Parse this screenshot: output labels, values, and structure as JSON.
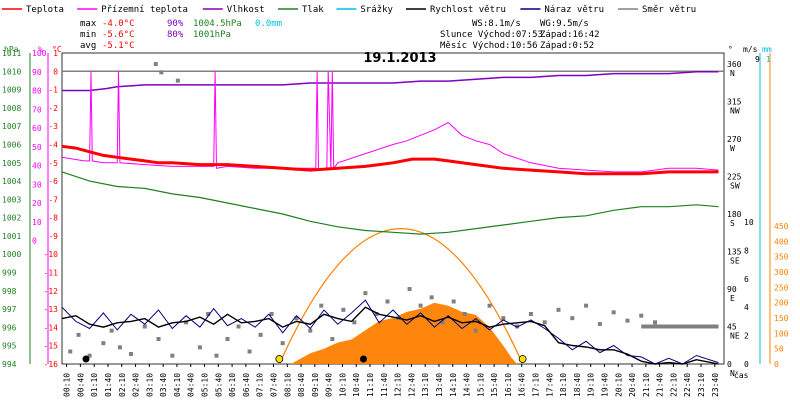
{
  "chart_data": {
    "type": "line",
    "title": "19.1.2013",
    "x_label": "čas",
    "x_ticks": [
      "00:10",
      "00:40",
      "01:10",
      "01:40",
      "02:10",
      "02:40",
      "03:10",
      "03:40",
      "04:10",
      "04:40",
      "05:10",
      "05:40",
      "06:10",
      "06:40",
      "07:10",
      "07:40",
      "08:10",
      "08:40",
      "09:10",
      "09:40",
      "10:10",
      "10:40",
      "11:10",
      "11:40",
      "12:10",
      "12:40",
      "13:10",
      "13:40",
      "14:10",
      "14:40",
      "15:10",
      "15:40",
      "16:10",
      "16:40",
      "17:10",
      "17:40",
      "18:10",
      "18:40",
      "19:10",
      "19:40",
      "20:10",
      "20:40",
      "21:10",
      "21:40",
      "22:10",
      "22:40",
      "23:10",
      "23:40"
    ],
    "legend": [
      {
        "name": "Teplota",
        "color": "#ff0000"
      },
      {
        "name": "Přízemní teplota",
        "color": "#ff00ff"
      },
      {
        "name": "Vlhkost",
        "color": "#8000c0"
      },
      {
        "name": "Tlak",
        "color": "#208020"
      },
      {
        "name": "Srážky",
        "color": "#00c0e0"
      },
      {
        "name": "Rychlost větru",
        "color": "#000000"
      },
      {
        "name": "Náraz větru",
        "color": "#000080"
      },
      {
        "name": "Směr větru",
        "color": "#808080"
      }
    ],
    "stats": {
      "max": {
        "label": "max",
        "temp": "-4.0°C",
        "hum": "90%",
        "press": "1004.5hPa",
        "rain": "0.0mm"
      },
      "min": {
        "label": "min",
        "temp": "-5.6°C",
        "hum": "80%",
        "press": "1001hPa"
      },
      "avg": {
        "label": "avg",
        "temp": "-5.1°C"
      }
    },
    "info": {
      "ws": "WS:8.1m/s",
      "wg": "WG:9.5m/s",
      "sun": "Slunce Východ:07:53",
      "sunset": "Západ:16:42",
      "moon": "Měsíc  Východ:10:56",
      "moonset": "Západ:0:52"
    },
    "axes": {
      "press_unit": "hPa",
      "hum_unit": "%",
      "temp_unit": "°C",
      "dir_unit": "°",
      "wind_unit": "m/s",
      "rain_unit": "mm",
      "press_ticks": [
        "1011",
        "1010",
        "1009",
        "1008",
        "1007",
        "1006",
        "1005",
        "1004",
        "1003",
        "1002",
        "1001",
        "1000",
        "999",
        "998",
        "997",
        "996",
        "995",
        "994"
      ],
      "hum_ticks": [
        "100",
        "90",
        "80",
        "70",
        "60",
        "50",
        "40",
        "30",
        "20",
        "10",
        "0"
      ],
      "temp_ticks": [
        "1",
        "0",
        "-1",
        "-2",
        "-3",
        "-4",
        "-5",
        "-6",
        "-7",
        "-8",
        "-9",
        "-10",
        "-11",
        "-12",
        "-13",
        "-14",
        "-15",
        "-16"
      ],
      "dir_ticks": [
        {
          "deg": "360",
          "n": "N"
        },
        {
          "deg": "315",
          "n": "NW"
        },
        {
          "deg": "270",
          "n": "W"
        },
        {
          "deg": "225",
          "n": "SW"
        },
        {
          "deg": "180",
          "n": "S"
        },
        {
          "deg": "135",
          "n": "SE"
        },
        {
          "deg": "90",
          "n": "E"
        },
        {
          "deg": "45",
          "n": "NE"
        },
        {
          "deg": "0",
          "n": "N"
        }
      ],
      "wind_ticks": [
        "10",
        "8",
        "6",
        "4",
        "2",
        "0"
      ],
      "rain_ticks": [
        "450",
        "400",
        "350",
        "300",
        "250",
        "200",
        "150",
        "100",
        "50",
        "0"
      ],
      "wind_top": "9",
      "rain_top": "1"
    },
    "temperature": [
      [
        0,
        -4.1
      ],
      [
        0.5,
        -4.2
      ],
      [
        1,
        -4.4
      ],
      [
        1.5,
        -4.6
      ],
      [
        2,
        -4.7
      ],
      [
        2.5,
        -4.8
      ],
      [
        3,
        -4.9
      ],
      [
        3.5,
        -5.0
      ],
      [
        4,
        -5.0
      ],
      [
        5,
        -5.1
      ],
      [
        6,
        -5.1
      ],
      [
        7,
        -5.2
      ],
      [
        8,
        -5.3
      ],
      [
        9,
        -5.4
      ],
      [
        10,
        -5.3
      ],
      [
        11,
        -5.2
      ],
      [
        12,
        -5.0
      ],
      [
        12.7,
        -4.8
      ],
      [
        13.5,
        -4.8
      ],
      [
        14,
        -4.9
      ],
      [
        15,
        -5.1
      ],
      [
        16,
        -5.3
      ],
      [
        17,
        -5.4
      ],
      [
        18,
        -5.5
      ],
      [
        19,
        -5.6
      ],
      [
        20,
        -5.6
      ],
      [
        21,
        -5.6
      ],
      [
        22,
        -5.5
      ],
      [
        23,
        -5.5
      ],
      [
        23.8,
        -5.5
      ]
    ],
    "ground_temp": [
      [
        0,
        -4.7
      ],
      [
        0.8,
        -4.9
      ],
      [
        1.0,
        -4.9
      ],
      [
        1.05,
        0
      ],
      [
        1.1,
        -4.9
      ],
      [
        1.5,
        -5.0
      ],
      [
        2.0,
        -5.0
      ],
      [
        2.05,
        0
      ],
      [
        2.1,
        -5.0
      ],
      [
        3,
        -5.1
      ],
      [
        4,
        -5.2
      ],
      [
        5,
        -5.2
      ],
      [
        5.5,
        -5.2
      ],
      [
        5.55,
        0
      ],
      [
        5.6,
        -5.3
      ],
      [
        6,
        -5.2
      ],
      [
        7,
        -5.3
      ],
      [
        8,
        -5.3
      ],
      [
        9,
        -5.3
      ],
      [
        9.2,
        -5.3
      ],
      [
        9.25,
        0
      ],
      [
        9.3,
        -5.3
      ],
      [
        9.6,
        -5.4
      ],
      [
        9.65,
        0
      ],
      [
        9.75,
        -5.4
      ],
      [
        9.8,
        0
      ],
      [
        9.85,
        -5.3
      ],
      [
        10,
        -5.0
      ],
      [
        11,
        -4.5
      ],
      [
        12,
        -4.0
      ],
      [
        12.5,
        -3.8
      ],
      [
        13,
        -3.5
      ],
      [
        13.5,
        -3.2
      ],
      [
        14,
        -2.8
      ],
      [
        14.5,
        -3.5
      ],
      [
        15,
        -3.8
      ],
      [
        15.5,
        -4.0
      ],
      [
        16,
        -4.5
      ],
      [
        17,
        -5.0
      ],
      [
        18,
        -5.3
      ],
      [
        19,
        -5.4
      ],
      [
        20,
        -5.5
      ],
      [
        21,
        -5.5
      ],
      [
        22,
        -5.3
      ],
      [
        23,
        -5.3
      ],
      [
        23.8,
        -5.4
      ]
    ],
    "humidity": [
      [
        0,
        80
      ],
      [
        1,
        80
      ],
      [
        1.6,
        81
      ],
      [
        2,
        82
      ],
      [
        3,
        83
      ],
      [
        4,
        83
      ],
      [
        5,
        83
      ],
      [
        6,
        83
      ],
      [
        7,
        83
      ],
      [
        8,
        83
      ],
      [
        9,
        84
      ],
      [
        10,
        84
      ],
      [
        11,
        84
      ],
      [
        12,
        84
      ],
      [
        13,
        85
      ],
      [
        14,
        85
      ],
      [
        15,
        86
      ],
      [
        16,
        87
      ],
      [
        17,
        87
      ],
      [
        18,
        88
      ],
      [
        19,
        88
      ],
      [
        20,
        89
      ],
      [
        21,
        89
      ],
      [
        22,
        89
      ],
      [
        23,
        90
      ],
      [
        23.8,
        90
      ]
    ],
    "pressure": [
      [
        0,
        1004.5
      ],
      [
        1,
        1004.0
      ],
      [
        2,
        1003.7
      ],
      [
        3,
        1003.6
      ],
      [
        4,
        1003.3
      ],
      [
        5,
        1003.1
      ],
      [
        6,
        1002.8
      ],
      [
        7,
        1002.5
      ],
      [
        8,
        1002.2
      ],
      [
        9,
        1001.8
      ],
      [
        10,
        1001.5
      ],
      [
        11,
        1001.3
      ],
      [
        12,
        1001.2
      ],
      [
        13,
        1001.1
      ],
      [
        14,
        1001.2
      ],
      [
        15,
        1001.4
      ],
      [
        16,
        1001.6
      ],
      [
        17,
        1001.8
      ],
      [
        18,
        1002.0
      ],
      [
        19,
        1002.1
      ],
      [
        20,
        1002.4
      ],
      [
        21,
        1002.6
      ],
      [
        22,
        1002.6
      ],
      [
        23,
        1002.7
      ],
      [
        23.8,
        1002.6
      ]
    ],
    "wind_speed": [
      [
        0,
        3.2
      ],
      [
        0.5,
        3.4
      ],
      [
        1,
        2.8
      ],
      [
        1.5,
        2.6
      ],
      [
        2,
        2.9
      ],
      [
        2.5,
        3.0
      ],
      [
        3,
        3.2
      ],
      [
        3.5,
        2.6
      ],
      [
        4,
        2.9
      ],
      [
        4.5,
        3.0
      ],
      [
        5,
        3.3
      ],
      [
        5.5,
        2.8
      ],
      [
        6,
        3.5
      ],
      [
        6.5,
        2.9
      ],
      [
        7,
        3.0
      ],
      [
        7.5,
        3.2
      ],
      [
        8,
        2.6
      ],
      [
        8.5,
        3.0
      ],
      [
        9,
        2.8
      ],
      [
        9.5,
        3.5
      ],
      [
        10,
        3.2
      ],
      [
        10.5,
        3.0
      ],
      [
        11,
        4.0
      ],
      [
        11.5,
        3.5
      ],
      [
        12,
        3.3
      ],
      [
        12.5,
        3.1
      ],
      [
        13,
        3.4
      ],
      [
        13.5,
        3.0
      ],
      [
        14,
        3.3
      ],
      [
        14.5,
        2.9
      ],
      [
        15,
        3.0
      ],
      [
        15.5,
        2.6
      ],
      [
        16,
        2.8
      ],
      [
        16.5,
        2.9
      ],
      [
        17,
        3.0
      ],
      [
        17.5,
        2.7
      ],
      [
        18,
        1.5
      ],
      [
        18.5,
        1.3
      ],
      [
        19,
        1.2
      ],
      [
        19.5,
        1.0
      ],
      [
        20,
        1.0
      ],
      [
        20.5,
        0.7
      ],
      [
        21,
        0.2
      ],
      [
        21.5,
        0
      ],
      [
        22,
        0.1
      ],
      [
        22.5,
        0
      ],
      [
        23,
        0.3
      ],
      [
        23.8,
        0
      ]
    ],
    "wind_gust": [
      [
        0,
        4.0
      ],
      [
        0.5,
        3.0
      ],
      [
        1,
        2.5
      ],
      [
        1.5,
        3.6
      ],
      [
        2,
        2.4
      ],
      [
        2.5,
        3.5
      ],
      [
        3,
        2.8
      ],
      [
        3.5,
        3.8
      ],
      [
        4,
        2.5
      ],
      [
        4.5,
        3.4
      ],
      [
        5,
        2.6
      ],
      [
        5.5,
        3.9
      ],
      [
        6,
        2.7
      ],
      [
        6.5,
        3.2
      ],
      [
        7,
        2.6
      ],
      [
        7.5,
        3.5
      ],
      [
        8,
        2.2
      ],
      [
        8.5,
        3.4
      ],
      [
        9,
        2.5
      ],
      [
        9.5,
        3.8
      ],
      [
        10,
        2.8
      ],
      [
        10.5,
        3.6
      ],
      [
        11,
        4.5
      ],
      [
        11.5,
        2.9
      ],
      [
        12,
        3.8
      ],
      [
        12.5,
        2.8
      ],
      [
        13,
        3.6
      ],
      [
        13.5,
        2.6
      ],
      [
        14,
        3.4
      ],
      [
        14.5,
        2.5
      ],
      [
        15,
        3.2
      ],
      [
        15.5,
        2.4
      ],
      [
        16,
        3.1
      ],
      [
        16.5,
        2.6
      ],
      [
        17,
        3.1
      ],
      [
        17.5,
        2.5
      ],
      [
        18,
        1.8
      ],
      [
        18.5,
        1.0
      ],
      [
        19,
        1.6
      ],
      [
        19.5,
        0.8
      ],
      [
        20,
        1.3
      ],
      [
        20.5,
        0.6
      ],
      [
        21,
        0.5
      ],
      [
        21.5,
        0
      ],
      [
        22,
        0.4
      ],
      [
        22.5,
        0
      ],
      [
        23,
        0.6
      ],
      [
        23.8,
        0.1
      ]
    ],
    "wind_dir_points": [
      [
        0.3,
        15
      ],
      [
        0.6,
        35
      ],
      [
        1,
        10
      ],
      [
        1.5,
        25
      ],
      [
        1.8,
        40
      ],
      [
        2.1,
        20
      ],
      [
        2.5,
        12
      ],
      [
        3,
        45
      ],
      [
        3.5,
        30
      ],
      [
        4,
        10
      ],
      [
        4.5,
        50
      ],
      [
        5,
        20
      ],
      [
        5.3,
        60
      ],
      [
        5.6,
        10
      ],
      [
        6,
        30
      ],
      [
        6.4,
        45
      ],
      [
        6.8,
        15
      ],
      [
        7.2,
        35
      ],
      [
        7.6,
        60
      ],
      [
        8,
        25
      ],
      [
        8.5,
        55
      ],
      [
        9,
        40
      ],
      [
        9.4,
        70
      ],
      [
        9.8,
        30
      ],
      [
        10.2,
        65
      ],
      [
        10.6,
        50
      ],
      [
        11,
        85
      ],
      [
        11.4,
        60
      ],
      [
        11.8,
        75
      ],
      [
        12.2,
        55
      ],
      [
        12.6,
        90
      ],
      [
        13,
        70
      ],
      [
        13.4,
        80
      ],
      [
        13.8,
        50
      ],
      [
        14.2,
        75
      ],
      [
        14.6,
        60
      ],
      [
        15,
        40
      ],
      [
        15.5,
        70
      ],
      [
        16,
        55
      ],
      [
        16.5,
        45
      ],
      [
        17,
        60
      ],
      [
        17.5,
        50
      ],
      [
        18,
        65
      ],
      [
        18.5,
        55
      ],
      [
        19,
        70
      ],
      [
        19.5,
        48
      ],
      [
        20,
        62
      ],
      [
        20.5,
        52
      ],
      [
        21,
        58
      ],
      [
        21.5,
        50
      ],
      [
        3.4,
        360
      ],
      [
        3.6,
        350
      ],
      [
        4.2,
        340
      ]
    ],
    "wind_dir_line": {
      "from": 21,
      "to": 23.8,
      "value": 45
    },
    "radiation": [
      [
        8.3,
        0
      ],
      [
        8.7,
        20
      ],
      [
        9.0,
        35
      ],
      [
        9.5,
        50
      ],
      [
        10,
        70
      ],
      [
        10.5,
        80
      ],
      [
        11,
        110
      ],
      [
        11.5,
        140
      ],
      [
        12,
        150
      ],
      [
        12.5,
        170
      ],
      [
        13,
        180
      ],
      [
        13.5,
        200
      ],
      [
        14,
        190
      ],
      [
        14.5,
        170
      ],
      [
        15,
        160
      ],
      [
        15.5,
        120
      ],
      [
        16,
        60
      ],
      [
        16.3,
        20
      ],
      [
        16.5,
        0
      ]
    ],
    "sun_arc": {
      "rise": 7.88,
      "set": 16.7,
      "peak_temp": -8.6
    },
    "sun_markers": [
      {
        "t": 7.88,
        "kind": "sunrise"
      },
      {
        "t": 16.7,
        "kind": "sunset"
      }
    ],
    "moon_markers": [
      {
        "t": 0.87,
        "kind": "moonset"
      },
      {
        "t": 10.93,
        "kind": "moonrise"
      }
    ]
  }
}
